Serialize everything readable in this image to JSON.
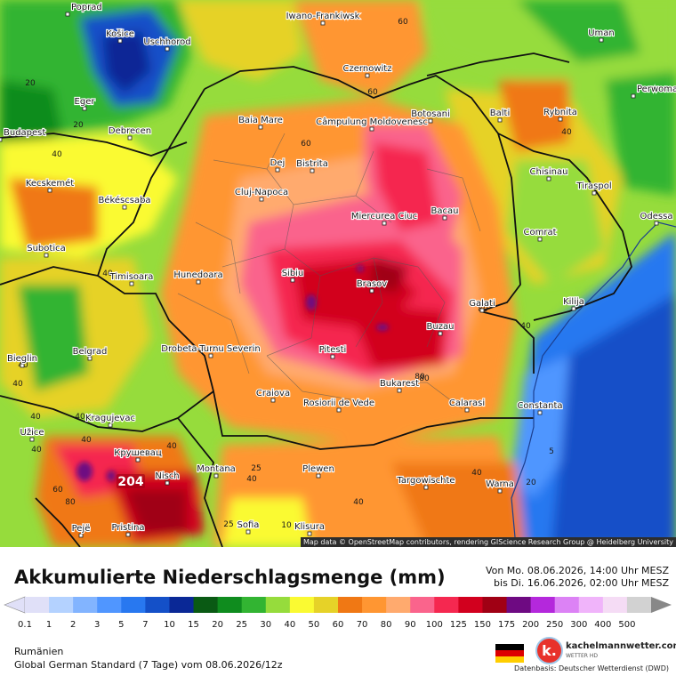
{
  "map": {
    "attribution": "Map data © OpenStreetMap contributors, rendering GIScience Research Group @ Heidelberg University",
    "cities": [
      {
        "name": "Poprad"
      },
      {
        "name": "Košice"
      },
      {
        "name": "Uschhorod"
      },
      {
        "name": "Iwano-Frankiwsk"
      },
      {
        "name": "Uman"
      },
      {
        "name": "Eger"
      },
      {
        "name": "Debrecen"
      },
      {
        "name": "Czernowitz"
      },
      {
        "name": "Baia Mare"
      },
      {
        "name": "Botosani"
      },
      {
        "name": "Balti"
      },
      {
        "name": "Rybnita"
      },
      {
        "name": "Perwomai"
      },
      {
        "name": "Câmpulung Moldovenesc"
      },
      {
        "name": "Dej"
      },
      {
        "name": "Bistrita"
      },
      {
        "name": "Budapest"
      },
      {
        "name": "Kecskemét"
      },
      {
        "name": "Békéscsaba"
      },
      {
        "name": "Cluj-Napoca"
      },
      {
        "name": "Chisinau"
      },
      {
        "name": "Tiraspol"
      },
      {
        "name": "Miercurea Ciuc"
      },
      {
        "name": "Bacau"
      },
      {
        "name": "Odessa"
      },
      {
        "name": "Subotica"
      },
      {
        "name": "Comrat"
      },
      {
        "name": "Timisoara"
      },
      {
        "name": "Hunedoara"
      },
      {
        "name": "Sibiu"
      },
      {
        "name": "Brasov"
      },
      {
        "name": "Galati"
      },
      {
        "name": "Kilija"
      },
      {
        "name": "Buzau"
      },
      {
        "name": "Bieglin"
      },
      {
        "name": "Belgrad"
      },
      {
        "name": "Drobeta-Turnu Severin"
      },
      {
        "name": "Pitesti"
      },
      {
        "name": "Bukarest"
      },
      {
        "name": "Craiova"
      },
      {
        "name": "Rosiorii de Vede"
      },
      {
        "name": "Calarasi"
      },
      {
        "name": "Constanta"
      },
      {
        "name": "Kragujevac"
      },
      {
        "name": "Užice"
      },
      {
        "name": "Крушевац"
      },
      {
        "name": "Nisch"
      },
      {
        "name": "Montana"
      },
      {
        "name": "Plewen"
      },
      {
        "name": "Targowischte"
      },
      {
        "name": "Warna"
      },
      {
        "name": "Sofia"
      },
      {
        "name": "Klisura"
      },
      {
        "name": "Pejë"
      },
      {
        "name": "Pristina"
      }
    ],
    "isolines": [
      "20",
      "20",
      "40",
      "60",
      "60",
      "60",
      "40",
      "40",
      "40",
      "40",
      "40",
      "40",
      "40",
      "40",
      "60",
      "80",
      "80",
      "80",
      "40",
      "25",
      "40",
      "5",
      "40",
      "80",
      "40",
      "40",
      "20",
      "25",
      "10"
    ],
    "max_value": "204"
  },
  "legend": {
    "title": "Akkumulierte Niederschlagsmenge (mm)",
    "period_from": "Von Mo. 08.06.2026, 14:00 Uhr MESZ",
    "period_to": "bis Di. 16.06.2026, 02:00 Uhr MESZ",
    "ticks": [
      "0.1",
      "1",
      "2",
      "3",
      "5",
      "7",
      "10",
      "15",
      "20",
      "25",
      "30",
      "40",
      "50",
      "60",
      "70",
      "80",
      "90",
      "100",
      "125",
      "150",
      "175",
      "200",
      "250",
      "300",
      "400",
      "500"
    ],
    "colors": [
      "#e0e0f8",
      "#b4d2ff",
      "#82b4ff",
      "#5096ff",
      "#2878f0",
      "#1450c8",
      "#0a2896",
      "#0a5a14",
      "#0f8c1e",
      "#32b432",
      "#96dc3c",
      "#fafa32",
      "#e6d228",
      "#f07814",
      "#ff9632",
      "#ffaa6e",
      "#fa648c",
      "#f52850",
      "#d2001e",
      "#a00014",
      "#6e0a82",
      "#b428dc",
      "#dc82f5",
      "#f0b4fa",
      "#f5dcf5",
      "#d2d2d2"
    ]
  },
  "footer": {
    "region": "Rumänien",
    "model": "Global German Standard (7 Tage) vom 08.06.2026/12z",
    "brand_name": "kachelmannwetter.com",
    "brand_sub": "WETTER HD",
    "brand_icon": "k.",
    "datasource": "Datenbasis: Deutscher Wetterdienst (DWD)",
    "flag_colors": [
      "#000000",
      "#dd0000",
      "#ffce00"
    ]
  }
}
